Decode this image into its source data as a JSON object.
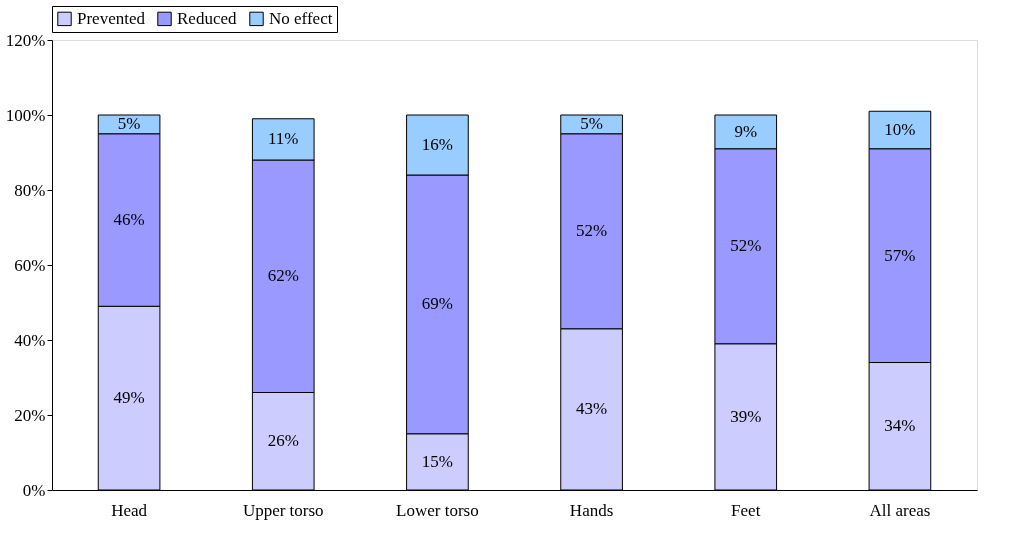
{
  "chart_data": {
    "type": "bar",
    "stacked": true,
    "categories": [
      "Head",
      "Upper torso",
      "Lower torso",
      "Hands",
      "Feet",
      "All areas"
    ],
    "series": [
      {
        "name": "Prevented",
        "color": "#ccccff",
        "values": [
          49,
          26,
          15,
          43,
          39,
          34
        ],
        "value_labels": [
          "49%",
          "26%",
          "15%",
          "43%",
          "39%",
          "34%"
        ]
      },
      {
        "name": "Reduced",
        "color": "#9999ff",
        "values": [
          46,
          62,
          69,
          52,
          52,
          57
        ],
        "value_labels": [
          "46%",
          "62%",
          "69%",
          "52%",
          "52%",
          "57%"
        ]
      },
      {
        "name": "No effect",
        "color": "#99ccff",
        "values": [
          5,
          11,
          16,
          5,
          9,
          10
        ],
        "value_labels": [
          "5%",
          "11%",
          "16%",
          "5%",
          "9%",
          "10%"
        ]
      }
    ],
    "ylim": [
      0,
      120
    ],
    "yticks": [
      {
        "value": 0,
        "label": "0%"
      },
      {
        "value": 20,
        "label": "20%"
      },
      {
        "value": 40,
        "label": "40%"
      },
      {
        "value": 60,
        "label": "60%"
      },
      {
        "value": 80,
        "label": "80%"
      },
      {
        "value": 100,
        "label": "100%"
      },
      {
        "value": 120,
        "label": "120%"
      }
    ],
    "grid": false,
    "legend": "top"
  }
}
